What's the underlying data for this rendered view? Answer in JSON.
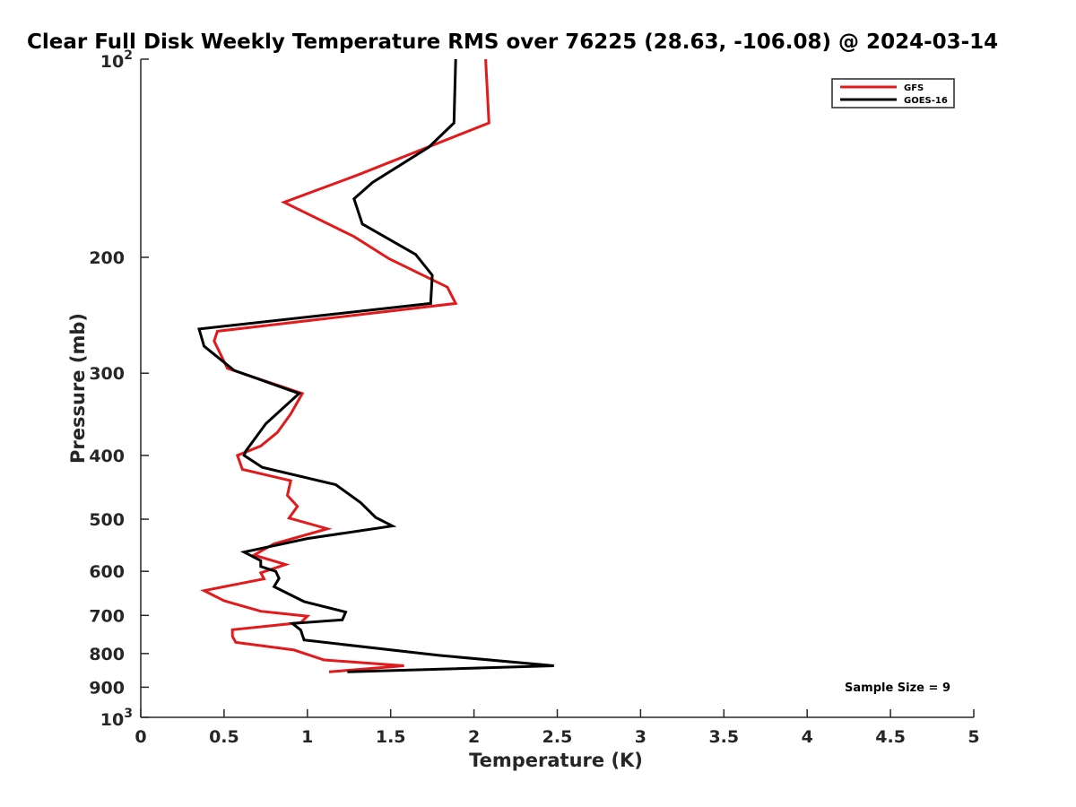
{
  "chart_data": {
    "type": "line",
    "title": "Clear Full Disk Weekly Temperature RMS over 76225 (28.63, -106.08) @ 2024-03-14",
    "xlabel": "Temperature (K)",
    "ylabel": "Pressure (mb)",
    "xlim": [
      0,
      5
    ],
    "ylim": [
      100,
      1000
    ],
    "yscale": "log",
    "y_reversed": true,
    "grid": false,
    "legend_position": "top-right",
    "x_ticks": [
      0,
      0.5,
      1,
      1.5,
      2,
      2.5,
      3,
      3.5,
      4,
      4.5,
      5
    ],
    "x_tick_labels": [
      "0",
      "0.5",
      "1",
      "1.5",
      "2",
      "2.5",
      "3",
      "3.5",
      "4",
      "4.5",
      "5"
    ],
    "y_ticks": [
      200,
      300,
      400,
      500,
      600,
      700,
      800,
      900
    ],
    "y_tick_labels": [
      "200",
      "300",
      "400",
      "500",
      "600",
      "700",
      "800",
      "900"
    ],
    "y_exp_ticks": [
      {
        "value": 100,
        "base": "10",
        "exp": "2"
      },
      {
        "value": 1000,
        "base": "10",
        "exp": "3"
      }
    ],
    "annotation": "Sample Size = 9",
    "series": [
      {
        "name": "GFS",
        "color": "#e31a1c",
        "points": [
          [
            2.07,
            100
          ],
          [
            2.09,
            125
          ],
          [
            1.3,
            150
          ],
          [
            0.86,
            165
          ],
          [
            1.28,
            186
          ],
          [
            1.49,
            201
          ],
          [
            1.84,
            222
          ],
          [
            1.89,
            235
          ],
          [
            0.46,
            259
          ],
          [
            0.44,
            268
          ],
          [
            0.52,
            295
          ],
          [
            0.97,
            322
          ],
          [
            0.9,
            346
          ],
          [
            0.82,
            369
          ],
          [
            0.72,
            387
          ],
          [
            0.58,
            400
          ],
          [
            0.61,
            420
          ],
          [
            0.9,
            437
          ],
          [
            0.88,
            460
          ],
          [
            0.94,
            478
          ],
          [
            0.89,
            498
          ],
          [
            1.12,
            517
          ],
          [
            0.8,
            545
          ],
          [
            0.68,
            567
          ],
          [
            0.87,
            586
          ],
          [
            0.72,
            603
          ],
          [
            0.74,
            616
          ],
          [
            0.38,
            642
          ],
          [
            0.5,
            665
          ],
          [
            0.72,
            690
          ],
          [
            1.0,
            702
          ],
          [
            0.96,
            718
          ],
          [
            0.55,
            736
          ],
          [
            0.55,
            753
          ],
          [
            0.57,
            769
          ],
          [
            0.92,
            790
          ],
          [
            1.1,
            818
          ],
          [
            1.58,
            835
          ],
          [
            1.13,
            853
          ]
        ]
      },
      {
        "name": "GOES-16",
        "color": "#000000",
        "points": [
          [
            1.89,
            100
          ],
          [
            1.88,
            125
          ],
          [
            1.73,
            136
          ],
          [
            1.39,
            154
          ],
          [
            1.28,
            163
          ],
          [
            1.33,
            178
          ],
          [
            1.65,
            198
          ],
          [
            1.75,
            213
          ],
          [
            1.74,
            235
          ],
          [
            0.35,
            257
          ],
          [
            0.38,
            273
          ],
          [
            0.56,
            297
          ],
          [
            0.95,
            322
          ],
          [
            0.75,
            358
          ],
          [
            0.63,
            394
          ],
          [
            0.62,
            400
          ],
          [
            0.73,
            417
          ],
          [
            1.17,
            443
          ],
          [
            1.32,
            472
          ],
          [
            1.41,
            497
          ],
          [
            1.51,
            512
          ],
          [
            1.0,
            535
          ],
          [
            0.62,
            561
          ],
          [
            0.72,
            578
          ],
          [
            0.72,
            590
          ],
          [
            0.81,
            600
          ],
          [
            0.83,
            615
          ],
          [
            0.8,
            633
          ],
          [
            0.98,
            667
          ],
          [
            1.23,
            692
          ],
          [
            1.21,
            711
          ],
          [
            0.91,
            720
          ],
          [
            0.96,
            737
          ],
          [
            0.98,
            763
          ],
          [
            1.79,
            805
          ],
          [
            2.48,
            835
          ],
          [
            1.24,
            853
          ]
        ]
      }
    ]
  }
}
